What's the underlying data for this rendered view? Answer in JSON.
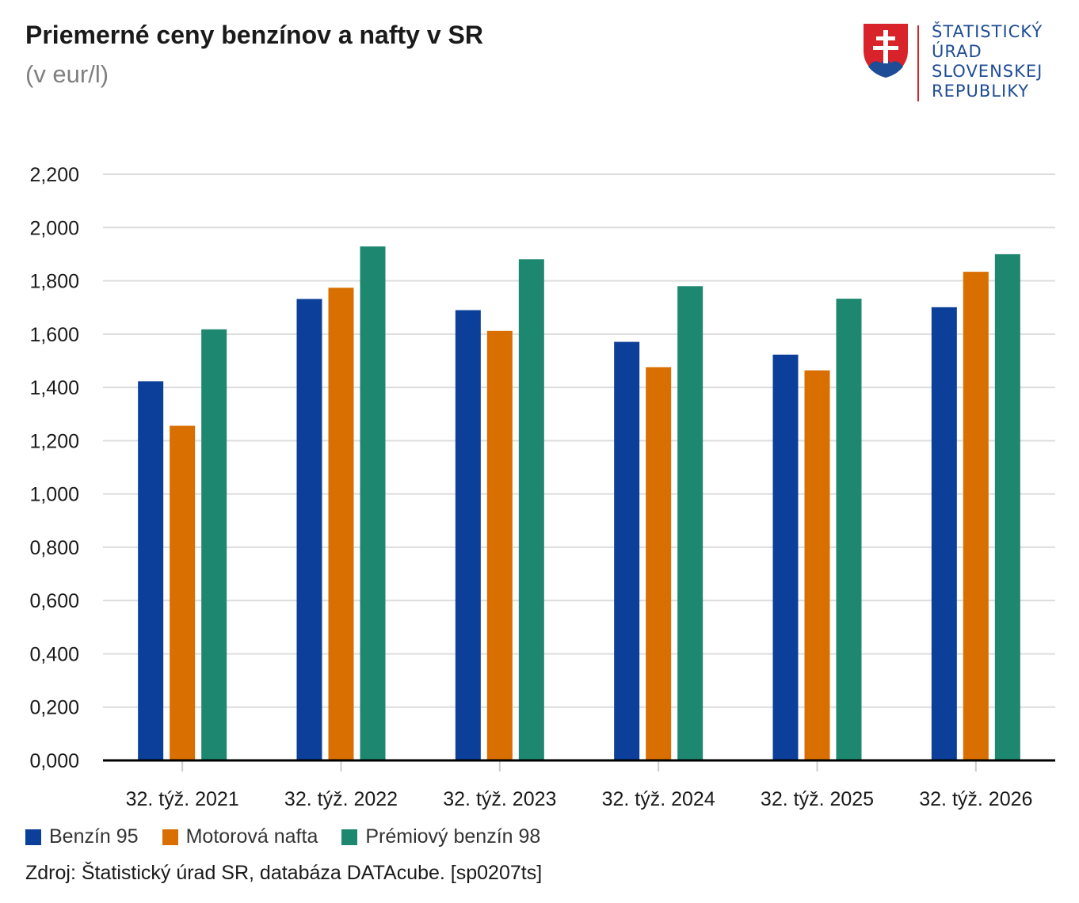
{
  "header": {
    "title": "Priemerné ceny benzínov a nafty v SR",
    "subtitle": "(v eur/l)"
  },
  "logo": {
    "text": "ŠTATISTICKÝ\nÚRAD\nSLOVENSKEJ\nREPUBLIKY",
    "colors": {
      "shield": "#d8232a",
      "text": "#1f4c96"
    }
  },
  "source": "Zdroj: Štatistický úrad SR, databáza DATAcube. [sp0207ts]",
  "chart_data": {
    "type": "bar",
    "title": "Priemerné ceny benzínov a nafty v SR",
    "subtitle": "(v eur/l)",
    "categories": [
      "32. týž. 2021",
      "32. týž. 2022",
      "32. týž. 2023",
      "32. týž. 2024",
      "32. týž. 2025",
      "32. týž. 2026"
    ],
    "series": [
      {
        "name": "Benzín 95",
        "color": "#0c3f99",
        "values": [
          1.423,
          1.732,
          1.69,
          1.571,
          1.523,
          1.701
        ]
      },
      {
        "name": "Motorová nafta",
        "color": "#d86f00",
        "values": [
          1.256,
          1.774,
          1.612,
          1.476,
          1.464,
          1.834
        ]
      },
      {
        "name": "Prémiový benzín 98",
        "color": "#1e8770",
        "values": [
          1.618,
          1.929,
          1.881,
          1.78,
          1.733,
          1.9
        ]
      }
    ],
    "ylim": [
      0,
      2.2
    ],
    "yticks": [
      "0,000",
      "0,200",
      "0,400",
      "0,600",
      "0,800",
      "1,000",
      "1,200",
      "1,400",
      "1,600",
      "1,800",
      "2,000",
      "2,200"
    ],
    "xlabel": "",
    "ylabel": "",
    "grid": true,
    "legend": "bottom-left"
  }
}
